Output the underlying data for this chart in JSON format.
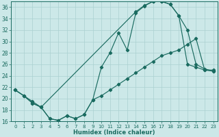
{
  "title": "",
  "xlabel": "Humidex (Indice chaleur)",
  "bg_color": "#cce8e8",
  "line_color": "#1a6b60",
  "grid_color": "#aad0d0",
  "xlim": [
    -0.5,
    23.5
  ],
  "ylim": [
    16,
    37
  ],
  "yticks": [
    16,
    18,
    20,
    22,
    24,
    26,
    28,
    30,
    32,
    34,
    36
  ],
  "xticks": [
    0,
    1,
    2,
    3,
    4,
    5,
    6,
    7,
    8,
    9,
    10,
    11,
    12,
    13,
    14,
    15,
    16,
    17,
    18,
    19,
    20,
    21,
    22,
    23
  ],
  "line1_x": [
    0,
    1,
    2,
    3,
    4,
    5,
    6,
    7,
    8,
    9,
    10,
    11,
    12,
    13,
    14,
    15,
    16,
    17,
    18,
    19,
    20,
    21,
    22,
    23
  ],
  "line1_y": [
    21.5,
    20.5,
    19.2,
    18.5,
    16.5,
    16.2,
    17.0,
    16.5,
    17.2,
    19.8,
    20.5,
    21.5,
    22.5,
    23.5,
    24.5,
    25.5,
    26.5,
    27.5,
    28.0,
    28.5,
    29.5,
    30.5,
    25.0,
    25.0
  ],
  "line2_x": [
    0,
    1,
    2,
    3,
    4,
    5,
    6,
    7,
    8,
    9,
    10,
    11,
    12,
    13,
    14,
    15,
    16,
    17,
    18,
    19,
    20,
    21,
    22,
    23
  ],
  "line2_y": [
    21.5,
    20.5,
    19.2,
    18.5,
    16.5,
    16.2,
    17.0,
    16.5,
    17.2,
    19.8,
    25.5,
    28.0,
    31.5,
    28.5,
    35.0,
    36.2,
    37.0,
    37.0,
    36.5,
    34.5,
    26.0,
    25.5,
    25.0,
    24.8
  ],
  "line3_x": [
    0,
    1,
    2,
    3,
    14,
    15,
    16,
    17,
    18,
    19,
    20,
    21,
    22,
    23
  ],
  "line3_y": [
    21.5,
    20.5,
    19.5,
    18.5,
    35.2,
    36.3,
    37.0,
    37.0,
    36.5,
    34.5,
    32.0,
    26.0,
    25.2,
    24.8
  ]
}
